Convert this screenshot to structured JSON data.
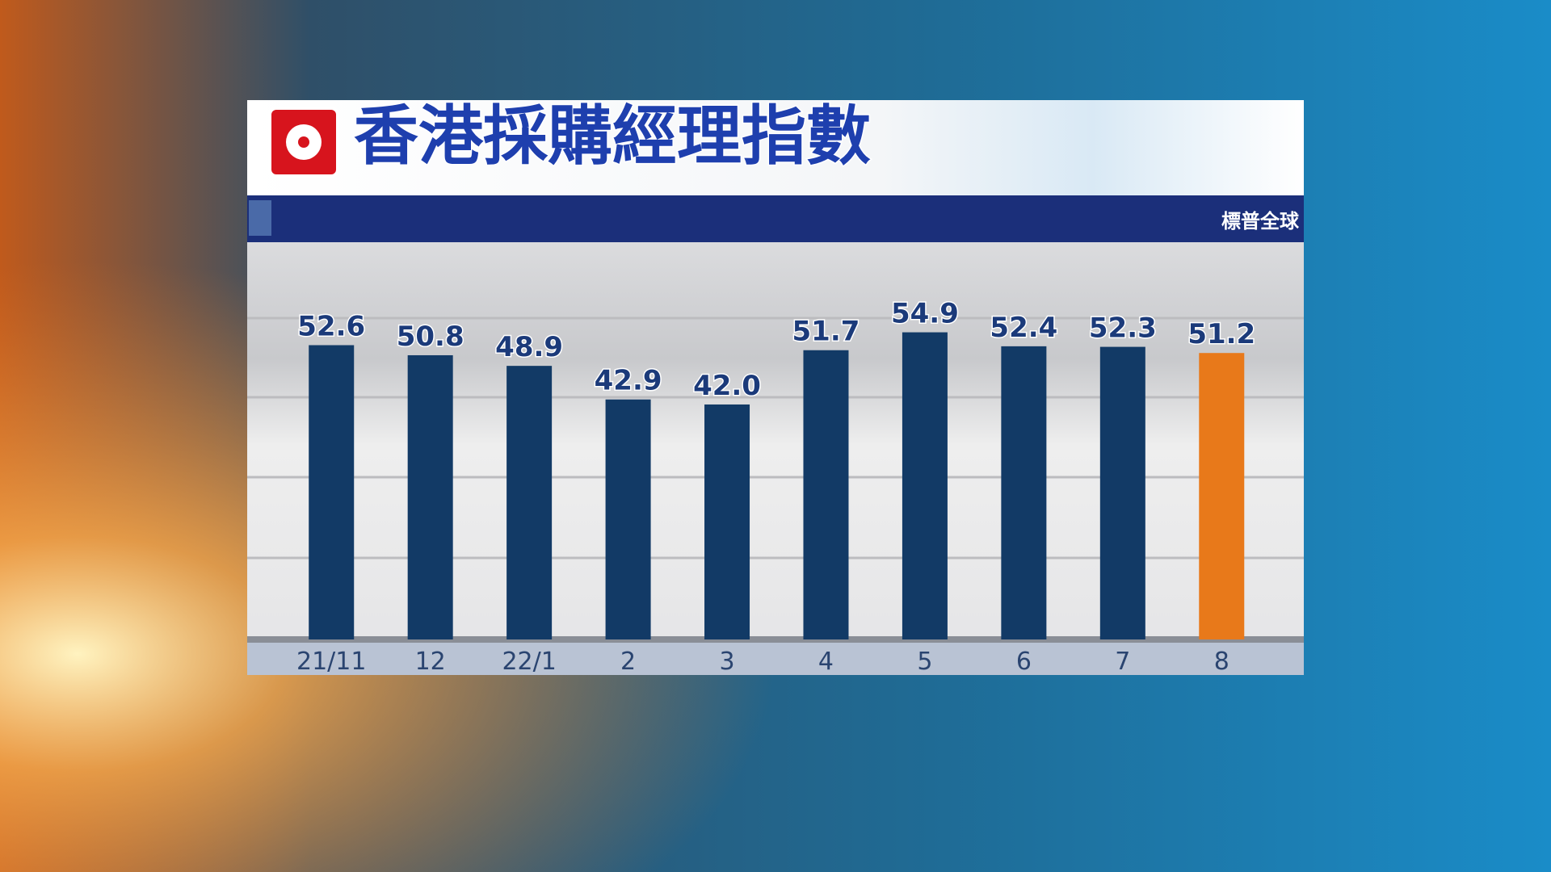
{
  "chart_data": {
    "type": "bar",
    "title": "香港採購經理指數",
    "source": "標普全球",
    "categories": [
      "21/11",
      "12",
      "22/1",
      "2",
      "3",
      "4",
      "5",
      "6",
      "7",
      "8"
    ],
    "values": [
      52.6,
      50.8,
      48.9,
      42.9,
      42.0,
      51.7,
      54.9,
      52.4,
      52.3,
      51.2
    ],
    "value_labels": [
      "52.6",
      "50.8",
      "48.9",
      "42.9",
      "42.0",
      "51.7",
      "54.9",
      "52.4",
      "52.3",
      "51.2"
    ],
    "colors": [
      "#123a66",
      "#123a66",
      "#123a66",
      "#123a66",
      "#123a66",
      "#123a66",
      "#123a66",
      "#123a66",
      "#123a66",
      "#e8791a"
    ],
    "ylim": [
      0,
      71
    ]
  }
}
